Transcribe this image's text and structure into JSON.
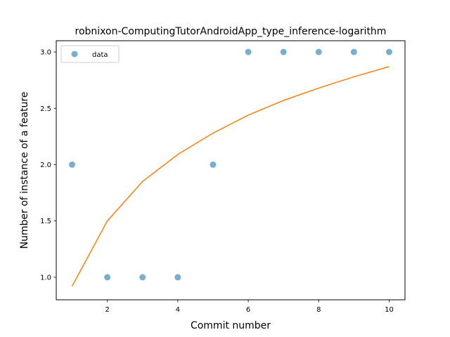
{
  "chart_data": {
    "type": "scatter",
    "title": "robnixon-ComputingTutorAndroidApp_type_inference-logarithm",
    "xlabel": "Commit number",
    "ylabel": "Number of instance of a feature",
    "xlim": [
      0.55,
      10.45
    ],
    "ylim": [
      0.8,
      3.1
    ],
    "x_ticks": [
      2,
      4,
      6,
      8,
      10
    ],
    "x_tick_labels": [
      "2",
      "4",
      "6",
      "8",
      "10"
    ],
    "y_ticks": [
      1.0,
      1.5,
      2.0,
      2.5,
      3.0
    ],
    "y_tick_labels": [
      "1.0",
      "1.5",
      "2.0",
      "2.5",
      "3.0"
    ],
    "grid": false,
    "legend_position": "top-left",
    "series": [
      {
        "name": "data",
        "kind": "scatter",
        "color": "#1f77b4",
        "x": [
          1,
          2,
          3,
          4,
          5,
          6,
          7,
          8,
          9,
          10
        ],
        "y": [
          2,
          1,
          1,
          1,
          2,
          3,
          3,
          3,
          3,
          3
        ]
      },
      {
        "kind": "line",
        "color": "#ff7f0e",
        "x": [
          1,
          2,
          3,
          4,
          5,
          6,
          7,
          8,
          9,
          10
        ],
        "y": [
          0.92,
          1.5,
          1.85,
          2.09,
          2.28,
          2.44,
          2.57,
          2.68,
          2.78,
          2.87
        ]
      }
    ]
  }
}
